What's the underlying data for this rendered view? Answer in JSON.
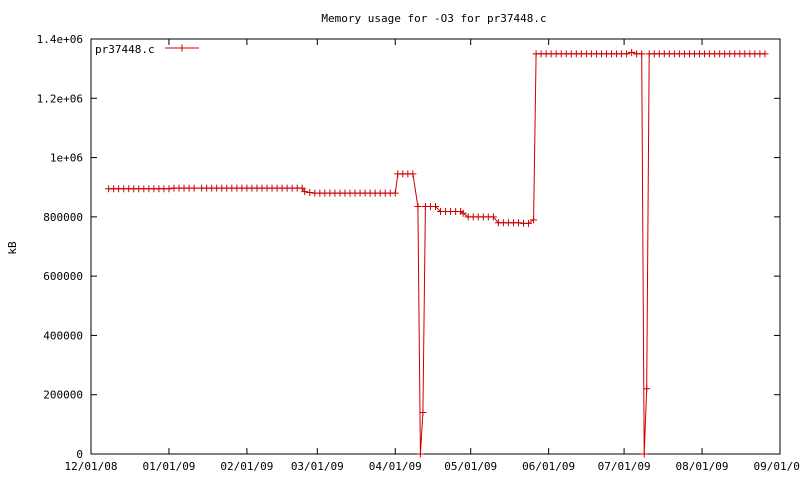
{
  "chart_data": {
    "type": "line",
    "title": "Memory usage for -O3 for pr37448.c",
    "xlabel": "",
    "ylabel": "kB",
    "xlim": [
      "2008-12-01",
      "2009-09-01"
    ],
    "ylim": [
      0,
      1400000
    ],
    "x_tick_labels": [
      "12/01/08",
      "01/01/09",
      "02/01/09",
      "03/01/09",
      "04/01/09",
      "05/01/09",
      "06/01/09",
      "07/01/09",
      "08/01/09",
      "09/01/09"
    ],
    "x_ticks": [
      "2008-12-01",
      "2009-01-01",
      "2009-02-01",
      "2009-03-01",
      "2009-04-01",
      "2009-05-01",
      "2009-06-01",
      "2009-07-01",
      "2009-08-01",
      "2009-09-01"
    ],
    "y_tick_labels": [
      "0",
      "200000",
      "400000",
      "600000",
      "800000",
      "1e+06",
      "1.2e+06",
      "1.4e+06"
    ],
    "y_ticks": [
      0,
      200000,
      400000,
      600000,
      800000,
      1000000,
      1200000,
      1400000
    ],
    "grid": false,
    "legend_position": "top-left",
    "series": [
      {
        "name": "pr37448.c",
        "color": "#cc0000",
        "marker": "plus",
        "points": [
          [
            "2008-12-08",
            895000
          ],
          [
            "2008-12-10",
            895000
          ],
          [
            "2008-12-12",
            895000
          ],
          [
            "2008-12-14",
            895000
          ],
          [
            "2008-12-16",
            895000
          ],
          [
            "2008-12-18",
            895000
          ],
          [
            "2008-12-20",
            895000
          ],
          [
            "2008-12-22",
            895000
          ],
          [
            "2008-12-24",
            895000
          ],
          [
            "2008-12-26",
            895000
          ],
          [
            "2008-12-28",
            895000
          ],
          [
            "2008-12-30",
            895000
          ],
          [
            "2009-01-01",
            895000
          ],
          [
            "2009-01-03",
            897000
          ],
          [
            "2009-01-05",
            897000
          ],
          [
            "2009-01-07",
            897000
          ],
          [
            "2009-01-09",
            897000
          ],
          [
            "2009-01-11",
            897000
          ],
          [
            "2009-01-14",
            897000
          ],
          [
            "2009-01-16",
            897000
          ],
          [
            "2009-01-18",
            897000
          ],
          [
            "2009-01-20",
            897000
          ],
          [
            "2009-01-22",
            897000
          ],
          [
            "2009-01-24",
            897000
          ],
          [
            "2009-01-26",
            897000
          ],
          [
            "2009-01-28",
            897000
          ],
          [
            "2009-01-30",
            897000
          ],
          [
            "2009-02-01",
            897000
          ],
          [
            "2009-02-03",
            897000
          ],
          [
            "2009-02-05",
            897000
          ],
          [
            "2009-02-07",
            897000
          ],
          [
            "2009-02-09",
            897000
          ],
          [
            "2009-02-11",
            897000
          ],
          [
            "2009-02-13",
            897000
          ],
          [
            "2009-02-15",
            897000
          ],
          [
            "2009-02-17",
            897000
          ],
          [
            "2009-02-19",
            897000
          ],
          [
            "2009-02-21",
            897000
          ],
          [
            "2009-02-23",
            897000
          ],
          [
            "2009-02-24",
            885000
          ],
          [
            "2009-02-26",
            882000
          ],
          [
            "2009-02-28",
            880000
          ],
          [
            "2009-03-02",
            880000
          ],
          [
            "2009-03-04",
            880000
          ],
          [
            "2009-03-06",
            880000
          ],
          [
            "2009-03-08",
            880000
          ],
          [
            "2009-03-10",
            880000
          ],
          [
            "2009-03-12",
            880000
          ],
          [
            "2009-03-14",
            880000
          ],
          [
            "2009-03-16",
            880000
          ],
          [
            "2009-03-18",
            880000
          ],
          [
            "2009-03-20",
            880000
          ],
          [
            "2009-03-22",
            880000
          ],
          [
            "2009-03-24",
            880000
          ],
          [
            "2009-03-26",
            880000
          ],
          [
            "2009-03-28",
            880000
          ],
          [
            "2009-03-30",
            880000
          ],
          [
            "2009-04-01",
            880000
          ],
          [
            "2009-04-02",
            945000
          ],
          [
            "2009-04-04",
            945000
          ],
          [
            "2009-04-06",
            945000
          ],
          [
            "2009-04-08",
            945000
          ],
          [
            "2009-04-10",
            835000
          ],
          [
            "2009-04-11",
            0
          ],
          [
            "2009-04-12",
            140000
          ],
          [
            "2009-04-13",
            835000
          ],
          [
            "2009-04-15",
            835000
          ],
          [
            "2009-04-17",
            835000
          ],
          [
            "2009-04-19",
            818000
          ],
          [
            "2009-04-21",
            818000
          ],
          [
            "2009-04-23",
            818000
          ],
          [
            "2009-04-25",
            818000
          ],
          [
            "2009-04-27",
            818000
          ],
          [
            "2009-04-28",
            812000
          ],
          [
            "2009-04-30",
            800000
          ],
          [
            "2009-05-02",
            800000
          ],
          [
            "2009-05-04",
            800000
          ],
          [
            "2009-05-06",
            800000
          ],
          [
            "2009-05-08",
            800000
          ],
          [
            "2009-05-10",
            800000
          ],
          [
            "2009-05-12",
            780000
          ],
          [
            "2009-05-14",
            780000
          ],
          [
            "2009-05-16",
            780000
          ],
          [
            "2009-05-18",
            780000
          ],
          [
            "2009-05-20",
            780000
          ],
          [
            "2009-05-22",
            778000
          ],
          [
            "2009-05-24",
            778000
          ],
          [
            "2009-05-26",
            790000
          ],
          [
            "2009-05-27",
            1350000
          ],
          [
            "2009-05-29",
            1350000
          ],
          [
            "2009-05-31",
            1350000
          ],
          [
            "2009-06-02",
            1350000
          ],
          [
            "2009-06-04",
            1350000
          ],
          [
            "2009-06-06",
            1350000
          ],
          [
            "2009-06-08",
            1350000
          ],
          [
            "2009-06-10",
            1350000
          ],
          [
            "2009-06-12",
            1350000
          ],
          [
            "2009-06-14",
            1350000
          ],
          [
            "2009-06-16",
            1350000
          ],
          [
            "2009-06-18",
            1350000
          ],
          [
            "2009-06-20",
            1350000
          ],
          [
            "2009-06-22",
            1350000
          ],
          [
            "2009-06-24",
            1350000
          ],
          [
            "2009-06-26",
            1350000
          ],
          [
            "2009-06-28",
            1350000
          ],
          [
            "2009-06-30",
            1350000
          ],
          [
            "2009-07-02",
            1350000
          ],
          [
            "2009-07-04",
            1355000
          ],
          [
            "2009-07-06",
            1350000
          ],
          [
            "2009-07-08",
            1350000
          ],
          [
            "2009-07-09",
            0
          ],
          [
            "2009-07-10",
            220000
          ],
          [
            "2009-07-11",
            1350000
          ],
          [
            "2009-07-13",
            1350000
          ],
          [
            "2009-07-15",
            1350000
          ],
          [
            "2009-07-17",
            1350000
          ],
          [
            "2009-07-19",
            1350000
          ],
          [
            "2009-07-21",
            1350000
          ],
          [
            "2009-07-23",
            1350000
          ],
          [
            "2009-07-25",
            1350000
          ],
          [
            "2009-07-27",
            1350000
          ],
          [
            "2009-07-29",
            1350000
          ],
          [
            "2009-07-31",
            1350000
          ],
          [
            "2009-08-02",
            1350000
          ],
          [
            "2009-08-04",
            1350000
          ],
          [
            "2009-08-06",
            1350000
          ],
          [
            "2009-08-08",
            1350000
          ],
          [
            "2009-08-10",
            1350000
          ],
          [
            "2009-08-12",
            1350000
          ],
          [
            "2009-08-14",
            1350000
          ],
          [
            "2009-08-16",
            1350000
          ],
          [
            "2009-08-18",
            1350000
          ],
          [
            "2009-08-20",
            1350000
          ],
          [
            "2009-08-22",
            1350000
          ],
          [
            "2009-08-24",
            1350000
          ],
          [
            "2009-08-26",
            1350000
          ]
        ]
      }
    ]
  }
}
